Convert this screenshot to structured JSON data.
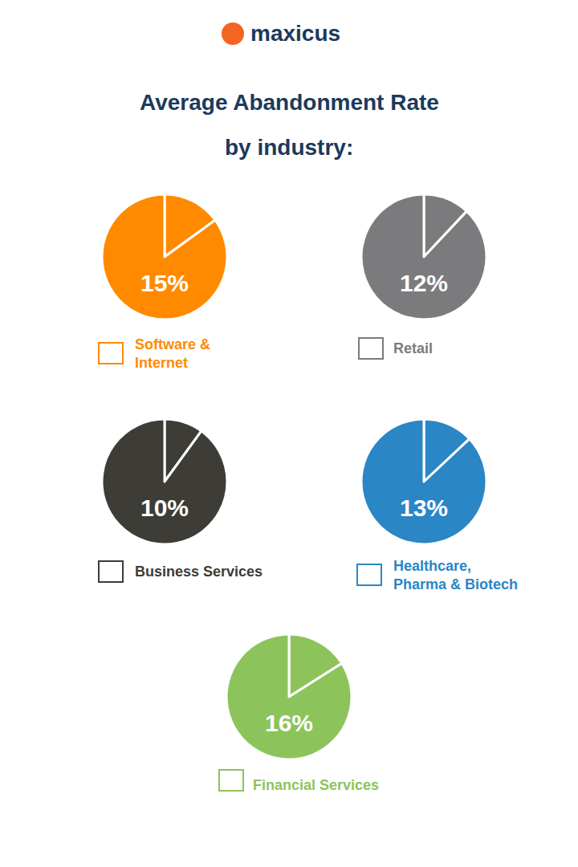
{
  "logo": "maxicus",
  "title": [
    "Average Abandonment Rate",
    "by industry:"
  ],
  "chart_data": [
    {
      "type": "pie",
      "title": [
        "Software &",
        "Internet"
      ],
      "values": [
        15,
        85
      ],
      "value_labels": [
        "15%",
        null
      ],
      "data_labels": true,
      "color": "#ff8a00"
    },
    {
      "type": "pie",
      "title": [
        "Retail"
      ],
      "values": [
        12,
        88
      ],
      "value_labels": [
        "12%",
        null
      ],
      "data_labels": true,
      "color": "#7b7b7d"
    },
    {
      "type": "pie",
      "title": [
        "Business Services"
      ],
      "values": [
        10,
        90
      ],
      "value_labels": [
        "10%",
        null
      ],
      "data_labels": true,
      "color": "#3d3c37"
    },
    {
      "type": "pie",
      "title": [
        "Healthcare,",
        "Pharma & Biotech"
      ],
      "values": [
        13,
        87
      ],
      "value_labels": [
        "13%",
        null
      ],
      "data_labels": true,
      "color": "#2a86c4"
    },
    {
      "type": "pie",
      "title": [
        "Financial Services"
      ],
      "values": [
        16,
        84
      ],
      "value_labels": [
        "16%",
        null
      ],
      "data_labels": true,
      "color": "#8cc45b"
    }
  ]
}
